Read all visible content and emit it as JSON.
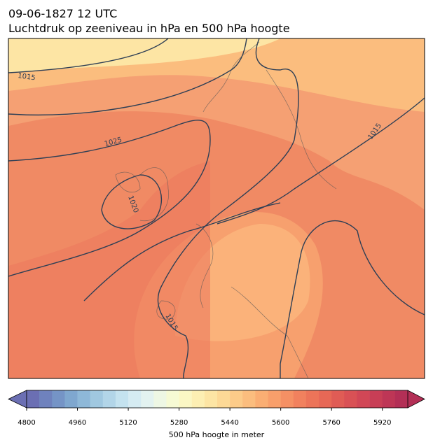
{
  "title": "09-06-1827 12 UTC",
  "subtitle": "Luchtdruk op zeeniveau in hPa en 500 hPa hoogte",
  "contour_labels": [
    "1015",
    "1025",
    "1020",
    "1015",
    "1015"
  ],
  "colorbar": {
    "label": "500 hPa hoogte in meter",
    "lim": [
      4800,
      6000
    ],
    "step": 40,
    "ticks": [
      4800,
      4960,
      5120,
      5280,
      5440,
      5600,
      5760,
      5920
    ],
    "colors": [
      "#6b6fb3",
      "#6f82bd",
      "#7594c6",
      "#7fa7cf",
      "#8eb8d8",
      "#a0c8e0",
      "#b2d5e8",
      "#c4e2ef",
      "#d5ebf2",
      "#e3f2f0",
      "#eef7e4",
      "#f6fad4",
      "#fbf7c4",
      "#fdefb3",
      "#fde5a4",
      "#fdd996",
      "#fccb89",
      "#fbbd7e",
      "#faae73",
      "#f89f6b",
      "#f59064",
      "#f1815e",
      "#ec7459",
      "#e76856",
      "#e05c55",
      "#d95155",
      "#d14756",
      "#c83e56",
      "#be3656",
      "#b32f56"
    ]
  }
}
